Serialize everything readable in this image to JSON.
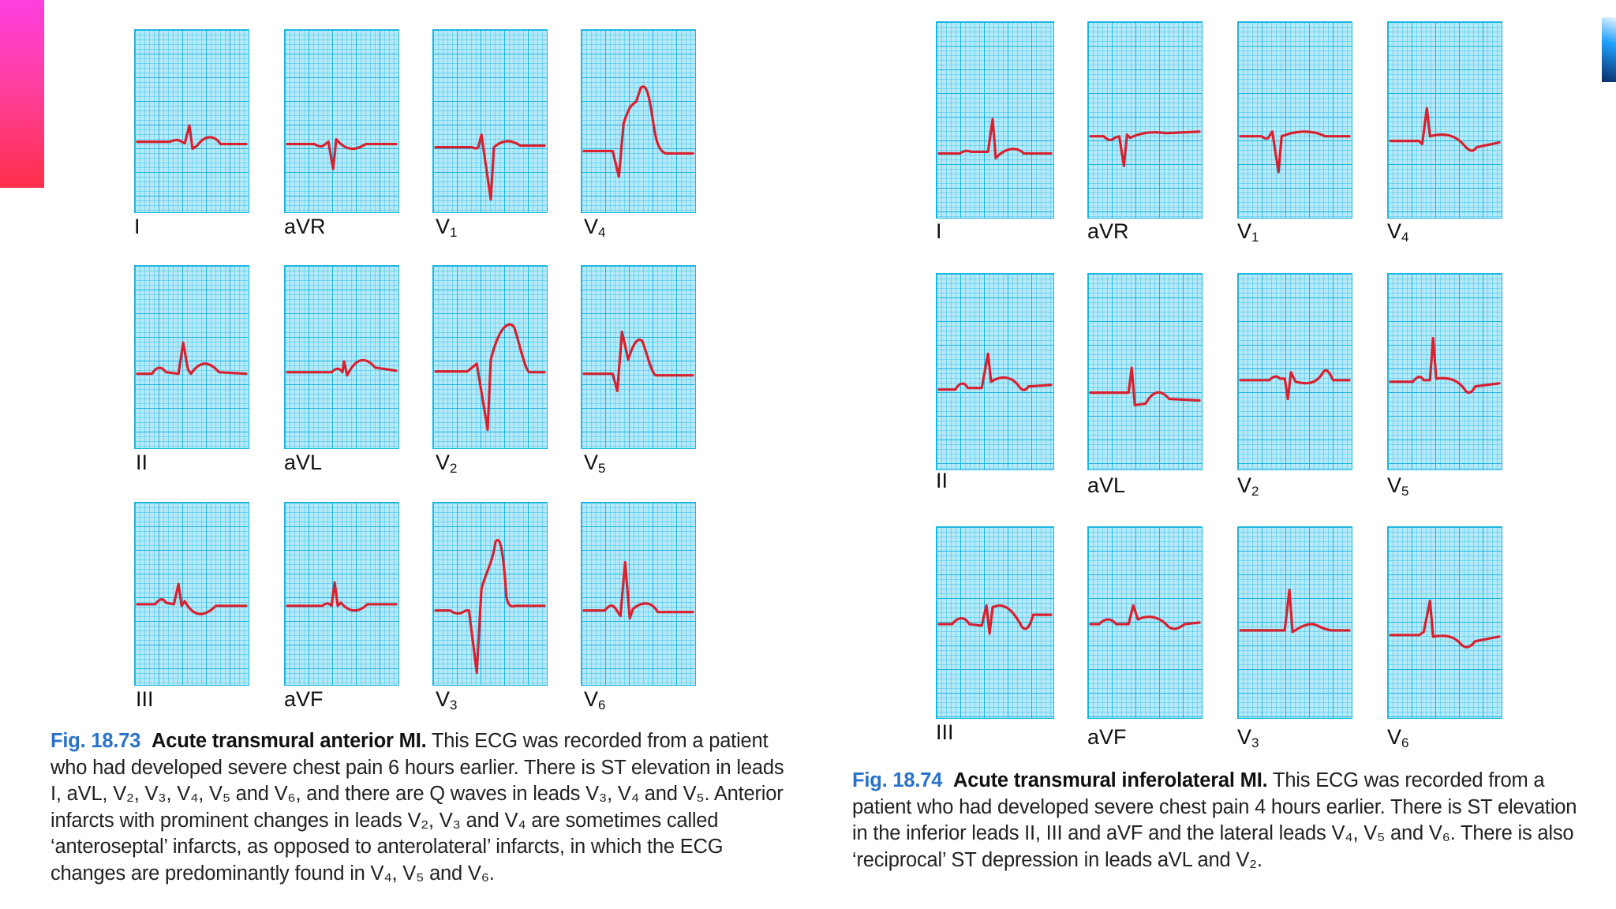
{
  "figures": [
    {
      "number": "Fig. 18.73",
      "title": "Acute transmural anterior MI.",
      "caption_text": "This ECG was recorded from a patient who had developed severe chest pain 6 hours earlier. There is ST elevation in leads I, aVL, V₂, V₃, V₄, V₅ and V₆, and there are Q waves in leads V₃, V₄ and V₅. Anterior infarcts with prominent changes in leads V₂, V₃ and V₄ are sometimes called ‘anteroseptal’ infarcts, as opposed to anterolateral’ infarcts, in which the ECG changes are predominantly found in V₄, V₅ and V₆.",
      "leads": [
        "I",
        "aVR",
        "V1",
        "V4",
        "II",
        "aVL",
        "V2",
        "V5",
        "III",
        "aVF",
        "V3",
        "V6"
      ]
    },
    {
      "number": "Fig. 18.74",
      "title": "Acute transmural inferolateral MI.",
      "caption_text": "This ECG was recorded from a patient who had developed severe chest pain 4 hours earlier. There is ST elevation in the inferior leads II, III and aVF and the lateral leads V₄, V₅ and V₆. There is also ‘reciprocal’ ST depression in leads aVL and V₂.",
      "leads": [
        "I",
        "aVR",
        "V1",
        "V4",
        "II",
        "aVL",
        "V2",
        "V5",
        "III",
        "aVF",
        "V3",
        "V6"
      ]
    }
  ],
  "colors": {
    "figure_number": "#2a72c8",
    "ecg_trace": "#d8202e",
    "grid_paper": "#b6e9f8"
  }
}
